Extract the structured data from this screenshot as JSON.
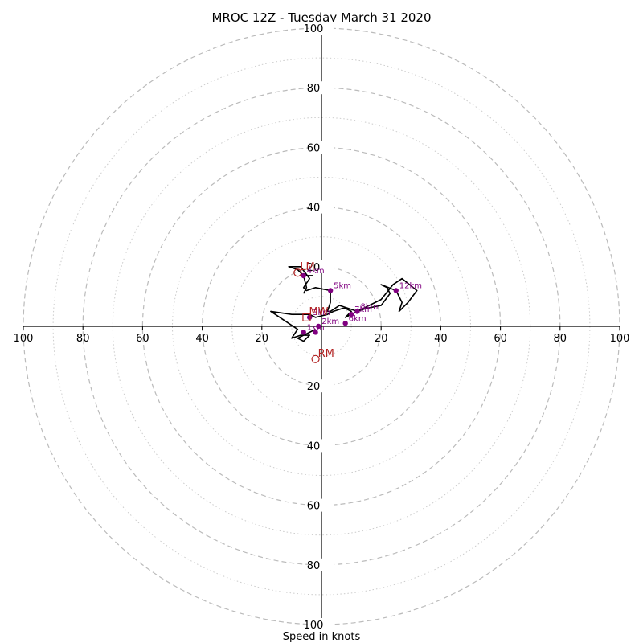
{
  "chart_data": {
    "type": "hodograph",
    "title": "MROC 12Z - Tuesday March 31 2020",
    "xlabel": "Speed in knots",
    "ylabel": "",
    "range": [
      -100,
      100
    ],
    "rings_major": [
      20,
      40,
      60,
      80,
      100
    ],
    "rings_minor": [
      10,
      30,
      50,
      70,
      90
    ],
    "x_tick_labels": [
      "100",
      "80",
      "60",
      "40",
      "20",
      "20",
      "40",
      "60",
      "80",
      "100"
    ],
    "x_tick_values": [
      -100,
      -80,
      -60,
      -40,
      -20,
      20,
      40,
      60,
      80,
      100
    ],
    "y_tick_labels": [
      "100",
      "80",
      "60",
      "40",
      "20",
      "20",
      "40",
      "60",
      "80",
      "100"
    ],
    "y_tick_values": [
      100,
      80,
      60,
      40,
      20,
      -20,
      -40,
      -60,
      -80,
      -100
    ],
    "grid": true,
    "colors": {
      "trace": "#000000",
      "height_markers": "#800080",
      "storm_motion": "#b22222",
      "grid": "#bbbbbb"
    },
    "trace": [
      [
        -2,
        -1
      ],
      [
        -4,
        -2
      ],
      [
        -8,
        -4
      ],
      [
        -6,
        -5
      ],
      [
        -4,
        -3
      ],
      [
        -7,
        -3
      ],
      [
        -10,
        -4
      ],
      [
        -8,
        -1
      ],
      [
        -17,
        5
      ],
      [
        -10,
        4
      ],
      [
        -4,
        4
      ],
      [
        -2,
        3
      ],
      [
        2,
        4
      ],
      [
        4,
        5
      ],
      [
        7,
        6
      ],
      [
        8,
        6
      ],
      [
        10,
        5
      ],
      [
        8,
        3
      ],
      [
        10,
        4
      ],
      [
        12,
        5
      ],
      [
        15,
        6
      ],
      [
        20,
        7
      ],
      [
        23,
        11
      ],
      [
        22,
        13
      ],
      [
        20,
        14
      ],
      [
        25,
        12
      ],
      [
        27,
        8
      ],
      [
        26,
        5
      ],
      [
        29,
        8
      ],
      [
        32,
        12
      ],
      [
        27,
        16
      ],
      [
        24,
        14
      ],
      [
        20,
        9
      ],
      [
        12,
        5
      ],
      [
        6,
        7
      ],
      [
        3,
        5
      ],
      [
        2,
        5
      ],
      [
        3,
        8
      ],
      [
        3,
        12
      ],
      [
        -2,
        13
      ],
      [
        -5,
        12
      ],
      [
        -6,
        13
      ],
      [
        -4,
        16
      ],
      [
        -7,
        20
      ],
      [
        -11,
        20
      ],
      [
        -8,
        19
      ],
      [
        -6,
        17
      ],
      [
        -3,
        17
      ],
      [
        -6,
        17
      ],
      [
        -5,
        13
      ],
      [
        -6,
        11
      ]
    ],
    "height_markers": [
      {
        "label": "1km",
        "x": -6,
        "y": -2
      },
      {
        "label": "3km",
        "x": -4,
        "y": 3
      },
      {
        "label": "5km",
        "x": 3,
        "y": 12
      },
      {
        "label": "2km",
        "x": -1,
        "y": 0
      },
      {
        "label": "4km",
        "x": -6,
        "y": 17
      },
      {
        "label": "6km",
        "x": 8,
        "y": 1
      },
      {
        "label": "7km",
        "x": 10,
        "y": 4
      },
      {
        "label": "8km",
        "x": 12,
        "y": 5
      },
      {
        "label": "12km",
        "x": 25,
        "y": 12
      },
      {
        "label": "",
        "x": -2,
        "y": -2
      }
    ],
    "storm_motion": [
      {
        "label": "LM",
        "x": -8,
        "y": 18,
        "marker": "circle"
      },
      {
        "label": "MW",
        "x": -5,
        "y": 3,
        "marker": "square"
      },
      {
        "label": "RM",
        "x": -2,
        "y": -11,
        "marker": "circle"
      }
    ]
  }
}
